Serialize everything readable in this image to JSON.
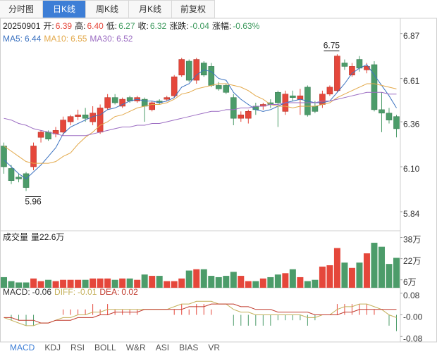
{
  "tabs": {
    "items": [
      "分时图",
      "日K线",
      "周K线",
      "月K线",
      "前复权"
    ],
    "active": 1
  },
  "info": {
    "date": "20250901",
    "items": [
      {
        "name": "开:",
        "value": 6.39,
        "color": "#e5473b"
      },
      {
        "name": "高:",
        "value": {
          "value": 6.4,
          "label": "6.40"
        },
        "color": "#e5473b"
      },
      {
        "name": "低:",
        "value": 6.27,
        "color": "#3e9a5e"
      },
      {
        "name": "收:",
        "value": 6.32,
        "color": "#3e9a5e"
      },
      {
        "name": "涨跌:",
        "value": -0.04,
        "color": "#3e9a5e"
      },
      {
        "name": "涨幅:",
        "value": {
          "value": -0.63,
          "label": "-0.63%"
        },
        "color": "#3e9a5e"
      }
    ]
  },
  "chart_data": [
    {
      "type": "candlestick",
      "up_color": "#e5473b",
      "down_color": "#4c9c6a",
      "open": [
        6.22,
        6.09,
        6.04,
        6.06,
        6.1,
        6.27,
        6.3,
        6.29,
        6.3,
        6.36,
        6.39,
        6.4,
        6.36,
        6.3,
        6.44,
        6.5,
        6.45,
        6.5,
        6.48,
        6.49,
        6.43,
        6.48,
        6.49,
        6.51,
        6.63,
        6.71,
        6.6,
        6.7,
        6.68,
        6.57,
        6.57,
        6.5,
        6.38,
        6.38,
        6.45,
        6.45,
        6.47,
        6.53,
        6.42,
        6.51,
        6.49,
        6.56,
        6.45,
        6.46,
        6.52,
        6.54,
        6.7,
        6.63,
        6.72,
        6.66,
        6.69,
        6.43,
        6.41,
        6.39
      ],
      "high": [
        6.24,
        6.11,
        6.06,
        6.07,
        6.24,
        6.31,
        6.31,
        6.33,
        6.39,
        6.4,
        6.43,
        6.44,
        6.45,
        6.46,
        6.52,
        6.52,
        6.5,
        6.51,
        6.51,
        6.5,
        6.48,
        6.49,
        6.51,
        6.63,
        6.73,
        6.72,
        6.73,
        6.71,
        6.7,
        6.59,
        6.58,
        6.52,
        6.42,
        6.43,
        6.47,
        6.47,
        6.49,
        6.54,
        6.54,
        6.54,
        6.55,
        6.57,
        6.48,
        6.54,
        6.57,
        6.75,
        6.72,
        6.7,
        6.74,
        6.7,
        6.71,
        6.53,
        6.44,
        6.4
      ],
      "low": [
        6.06,
        6.0,
        6.01,
        5.96,
        6.08,
        6.24,
        6.25,
        6.27,
        6.28,
        6.34,
        6.37,
        6.36,
        6.34,
        6.29,
        6.43,
        6.46,
        6.44,
        6.47,
        6.47,
        6.36,
        6.42,
        6.46,
        6.48,
        6.5,
        6.62,
        6.59,
        6.58,
        6.62,
        6.56,
        6.54,
        6.52,
        6.34,
        6.36,
        6.35,
        6.4,
        6.43,
        6.44,
        6.33,
        6.4,
        6.48,
        6.4,
        6.39,
        6.41,
        6.44,
        6.51,
        6.53,
        6.66,
        6.62,
        6.65,
        6.64,
        6.42,
        6.3,
        6.35,
        6.27
      ],
      "close": [
        6.1,
        6.02,
        6.03,
        5.98,
        6.22,
        6.3,
        6.26,
        6.31,
        6.37,
        6.39,
        6.4,
        6.38,
        6.41,
        6.44,
        6.5,
        6.47,
        6.49,
        6.48,
        6.5,
        6.45,
        6.47,
        6.47,
        6.5,
        6.62,
        6.72,
        6.6,
        6.72,
        6.63,
        6.57,
        6.55,
        6.53,
        6.38,
        6.4,
        6.42,
        6.43,
        6.46,
        6.46,
        6.47,
        6.52,
        6.5,
        6.51,
        6.4,
        6.42,
        6.52,
        6.56,
        6.74,
        6.68,
        6.68,
        6.67,
        6.68,
        6.43,
        6.41,
        6.37,
        6.32
      ],
      "ylim": [
        5.73,
        6.95
      ],
      "yticks": [
        6.87,
        6.61,
        6.36,
        {
          "value": 6.1,
          "label": "6.10"
        },
        5.84
      ],
      "series": [
        {
          "name": "MA5:",
          "color": "#3b72c0",
          "values": [
            6.14,
            6.1,
            6.06,
            6.03,
            6.07,
            6.11,
            6.16,
            6.21,
            6.29,
            6.33,
            6.35,
            6.37,
            6.39,
            6.4,
            6.43,
            6.44,
            6.46,
            6.48,
            6.49,
            6.48,
            6.48,
            6.47,
            6.48,
            6.5,
            6.56,
            6.58,
            6.63,
            6.66,
            6.65,
            6.61,
            6.6,
            6.53,
            6.49,
            6.46,
            6.43,
            6.42,
            6.43,
            6.45,
            6.47,
            6.48,
            6.49,
            6.48,
            6.47,
            6.47,
            6.48,
            6.53,
            6.58,
            6.64,
            6.67,
            6.69,
            6.63,
            6.57,
            6.51,
            6.44
          ]
        },
        {
          "name": "MA10:",
          "color": "#e3a94b",
          "values": [
            6.22,
            6.19,
            6.16,
            6.13,
            6.12,
            6.12,
            6.12,
            6.13,
            6.16,
            6.18,
            6.23,
            6.27,
            6.3,
            6.34,
            6.36,
            6.39,
            6.4,
            6.42,
            6.44,
            6.45,
            6.46,
            6.46,
            6.47,
            6.49,
            6.52,
            6.53,
            6.55,
            6.56,
            6.57,
            6.58,
            6.58,
            6.57,
            6.56,
            6.54,
            6.51,
            6.49,
            6.46,
            6.45,
            6.45,
            6.44,
            6.45,
            6.45,
            6.45,
            6.46,
            6.47,
            6.5,
            6.52,
            6.54,
            6.56,
            6.58,
            6.58,
            6.57,
            6.56,
            6.55
          ]
        },
        {
          "name": "MA30:",
          "color": "#9b6cc2",
          "values": [
            6.38,
            6.37,
            6.35,
            6.34,
            6.32,
            6.31,
            6.3,
            6.29,
            6.28,
            6.28,
            6.28,
            6.28,
            6.29,
            6.3,
            6.31,
            6.32,
            6.33,
            6.33,
            6.34,
            6.34,
            6.35,
            6.35,
            6.36,
            6.37,
            6.38,
            6.39,
            6.4,
            6.41,
            6.42,
            6.42,
            6.43,
            6.43,
            6.44,
            6.44,
            6.45,
            6.45,
            6.46,
            6.46,
            6.47,
            6.47,
            6.47,
            6.47,
            6.47,
            6.48,
            6.48,
            6.49,
            6.5,
            6.51,
            6.52,
            6.53,
            6.53,
            6.53,
            6.52,
            6.52
          ]
        }
      ]
    },
    {
      "type": "bar",
      "title": "成交量",
      "current": "量22.6万",
      "values": [
        8,
        5,
        4,
        4,
        7,
        5,
        6,
        5,
        6,
        6,
        6,
        6,
        7,
        7,
        7,
        6,
        7,
        7,
        6,
        10,
        9,
        9,
        5,
        5,
        7,
        13,
        14,
        14,
        9,
        8,
        9,
        12,
        9,
        5,
        5,
        7,
        8,
        10,
        11,
        14,
        8,
        5,
        6,
        16,
        17,
        30,
        19,
        15,
        19,
        26,
        34,
        31,
        18,
        22.6
      ],
      "ylim": [
        0,
        42
      ],
      "yticks": [
        {
          "value": 38,
          "label": "38万"
        },
        {
          "value": 22,
          "label": "22万"
        },
        {
          "value": 6,
          "label": "6万"
        }
      ]
    },
    {
      "type": "macd",
      "up_color": "#e5473b",
      "down_color": "#4c9c6a",
      "ylim": [
        -0.1,
        0.1
      ],
      "yticks": [
        0.08,
        {
          "value": 0,
          "label": "-0.00"
        },
        -0.08
      ],
      "series": [
        {
          "name": "MACD:",
          "color": "#333333",
          "values": [
            0,
            -0.02,
            -0.02,
            -0.04,
            -0.04,
            0,
            0,
            0,
            0.02,
            0.02,
            0.02,
            0.02,
            0.04,
            0.02,
            0.04,
            0.02,
            0.02,
            0.02,
            0.02,
            0,
            0,
            0,
            0,
            0.02,
            0.04,
            0.02,
            0.04,
            0.04,
            0.02,
            0,
            0,
            -0.04,
            -0.04,
            -0.04,
            -0.04,
            -0.04,
            -0.04,
            -0.02,
            -0.02,
            -0.02,
            -0.02,
            -0.04,
            -0.02,
            0,
            0,
            0.04,
            0.04,
            0.04,
            0.04,
            0.04,
            0.02,
            0,
            -0.04,
            -0.06
          ]
        },
        {
          "name": "DIFF:",
          "color": "#c4b05a",
          "values": [
            -0.01,
            -0.02,
            -0.03,
            -0.04,
            -0.04,
            -0.03,
            -0.03,
            -0.02,
            -0.01,
            -0.01,
            0,
            0,
            0.01,
            0.01,
            0.02,
            0.02,
            0.02,
            0.02,
            0.02,
            0.02,
            0.02,
            0.02,
            0.02,
            0.03,
            0.04,
            0.04,
            0.05,
            0.05,
            0.05,
            0.04,
            0.04,
            0.02,
            0.01,
            0.01,
            0,
            0,
            0,
            0,
            0,
            0,
            0,
            -0.01,
            -0.01,
            0,
            0,
            0.02,
            0.03,
            0.03,
            0.04,
            0.04,
            0.03,
            0.02,
            0,
            -0.01
          ]
        },
        {
          "name": "DEA:",
          "color": "#c0392b",
          "values": [
            -0.01,
            -0.01,
            -0.02,
            -0.02,
            -0.02,
            -0.03,
            -0.03,
            -0.02,
            -0.02,
            -0.02,
            -0.01,
            -0.01,
            -0.01,
            0,
            0,
            0.01,
            0.01,
            0.01,
            0.01,
            0.02,
            0.02,
            0.02,
            0.02,
            0.02,
            0.02,
            0.03,
            0.03,
            0.03,
            0.04,
            0.04,
            0.04,
            0.04,
            0.03,
            0.03,
            0.02,
            0.02,
            0.02,
            0.01,
            0.01,
            0.01,
            0.01,
            0.01,
            0,
            0,
            0,
            0,
            0.01,
            0.01,
            0.02,
            0.02,
            0.02,
            0.02,
            0.02,
            0.02
          ]
        }
      ]
    }
  ],
  "indicator_tabs": {
    "items": [
      "MACD",
      "KDJ",
      "RSI",
      "BOLL",
      "W&R",
      "ASI",
      "BIAS",
      "VR"
    ],
    "active": 0
  }
}
